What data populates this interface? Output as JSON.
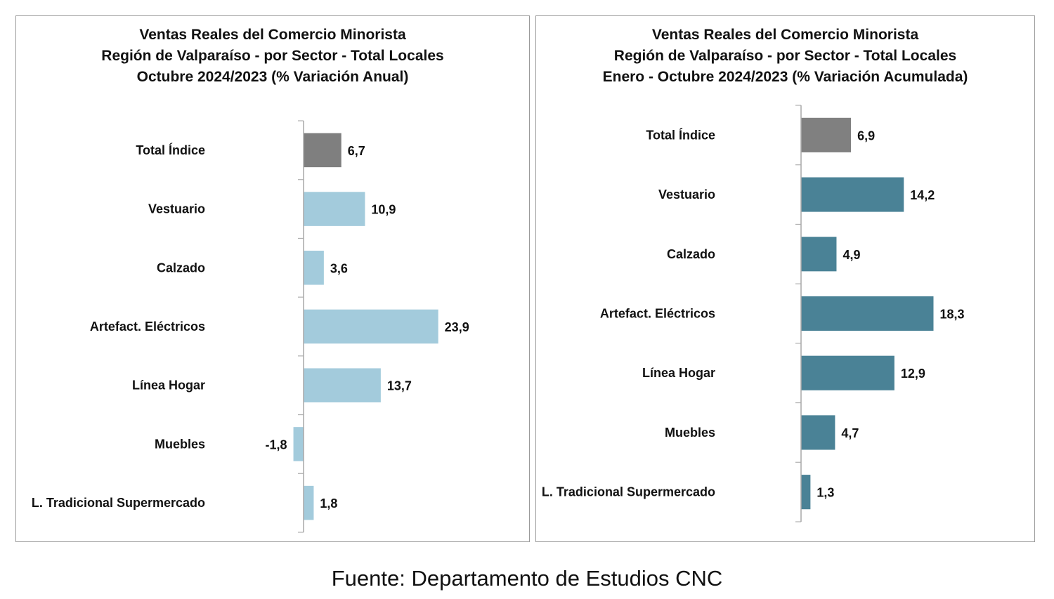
{
  "chart_data": [
    {
      "type": "bar",
      "orientation": "horizontal",
      "title_lines": [
        "Ventas Reales del Comercio Minorista",
        "Región de Valparaíso - por Sector - Total Locales",
        "Octubre 2024/2023 (% Variación Anual)"
      ],
      "categories": [
        "Total Índice",
        "Vestuario",
        "Calzado",
        "Artefact. Eléctricos",
        "Línea Hogar",
        "Muebles",
        "L. Tradicional Supermercado"
      ],
      "values": [
        6.7,
        10.9,
        3.6,
        23.9,
        13.7,
        -1.8,
        1.8
      ],
      "value_labels": [
        "6,7",
        "10,9",
        "3,6",
        "23,9",
        "13,7",
        "-1,8",
        "1,8"
      ],
      "bar_colors": [
        "#7f7f7f",
        "#a3cbdc",
        "#a3cbdc",
        "#a3cbdc",
        "#a3cbdc",
        "#a3cbdc",
        "#a3cbdc"
      ],
      "xlim": [
        -2,
        30
      ]
    },
    {
      "type": "bar",
      "orientation": "horizontal",
      "title_lines": [
        "Ventas Reales del Comercio Minorista",
        "Región de Valparaíso - por Sector  - Total Locales",
        "Enero - Octubre 2024/2023 (% Variación Acumulada)"
      ],
      "categories": [
        "Total Índice",
        "Vestuario",
        "Calzado",
        "Artefact. Eléctricos",
        "Línea Hogar",
        "Muebles",
        "L. Tradicional Supermercado"
      ],
      "values": [
        6.9,
        14.2,
        4.9,
        18.3,
        12.9,
        4.7,
        1.3
      ],
      "value_labels": [
        "6,9",
        "14,2",
        "4,9",
        "18,3",
        "12,9",
        "4,7",
        "1,3"
      ],
      "bar_colors": [
        "#808080",
        "#4a8296",
        "#4a8296",
        "#4a8296",
        "#4a8296",
        "#4a8296",
        "#4a8296"
      ],
      "xlim": [
        -2,
        30
      ]
    }
  ],
  "source": "Fuente: Departamento de Estudios CNC"
}
